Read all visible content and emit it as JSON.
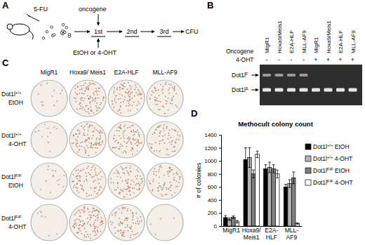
{
  "panels": {
    "A": {
      "label": "A",
      "drug": "5-FU",
      "oncogene": "oncogene",
      "treatment": "EtOH or 4-OHT",
      "steps": [
        "1st",
        "2nd",
        "3rd"
      ],
      "readout": "CFU"
    },
    "B": {
      "label": "B",
      "row_label": "Oncogene",
      "treatment_label": "4-OHT",
      "lanes": [
        {
          "oncogene": "MigR1",
          "treatment": "-"
        },
        {
          "oncogene": "Hoxa9/Meis1",
          "treatment": "-"
        },
        {
          "oncogene": "E2A-HLF",
          "treatment": "-"
        },
        {
          "oncogene": "MLL-AF9",
          "treatment": "-"
        },
        {
          "oncogene": "MigR1",
          "treatment": "+"
        },
        {
          "oncogene": "Hoxa9/Meis1",
          "treatment": "+"
        },
        {
          "oncogene": "E2A-HLF",
          "treatment": "+"
        },
        {
          "oncogene": "MLL-AF9",
          "treatment": "+"
        }
      ],
      "bands": [
        "Dot1lF",
        "Dot1lΔ"
      ]
    },
    "C": {
      "label": "C",
      "columns": [
        "MigR1",
        "Hoxa9/ Meis1",
        "E2A-HLF",
        "MLL-AF9"
      ],
      "rows": [
        {
          "genotype": "Dot1l+/+",
          "treatment": "EtOH"
        },
        {
          "genotype": "Dot1l+/+",
          "treatment": "4-OHT"
        },
        {
          "genotype": "Dot1lF/F",
          "treatment": "EtOH"
        },
        {
          "genotype": "Dot1lF/F",
          "treatment": "4-OHT"
        }
      ]
    },
    "D": {
      "label": "D"
    }
  },
  "chart_data": {
    "type": "bar",
    "title": "Methocult colony count",
    "y_label": "# of colonies",
    "categories": [
      "MigR1",
      "Hoxa9/ Meis1",
      "E2A-HLF",
      "MLL-AF9"
    ],
    "series": [
      {
        "name": "Dot1l+/+ EtOH",
        "color": "#000000",
        "values": [
          130,
          1020,
          880,
          600
        ],
        "errors": [
          30,
          180,
          60,
          40
        ]
      },
      {
        "name": "Dot1l+/+ 4-OHT",
        "color": "#b4b4b4",
        "values": [
          105,
          1050,
          900,
          650
        ],
        "errors": [
          20,
          150,
          80,
          60
        ]
      },
      {
        "name": "Dot1lF/F EtOH",
        "color": "#7f7f7f",
        "values": [
          135,
          800,
          880,
          740
        ],
        "errors": [
          20,
          60,
          60,
          90
        ]
      },
      {
        "name": "Dot1lF/F 4-OHT",
        "color": "#ffffff",
        "values": [
          65,
          1100,
          800,
          40
        ],
        "errors": [
          20,
          50,
          60,
          10
        ]
      }
    ],
    "ylim": [
      0,
      1400
    ],
    "yticks": [
      0,
      200,
      400,
      600,
      800,
      1000,
      1200,
      1400
    ],
    "legend": "right"
  }
}
